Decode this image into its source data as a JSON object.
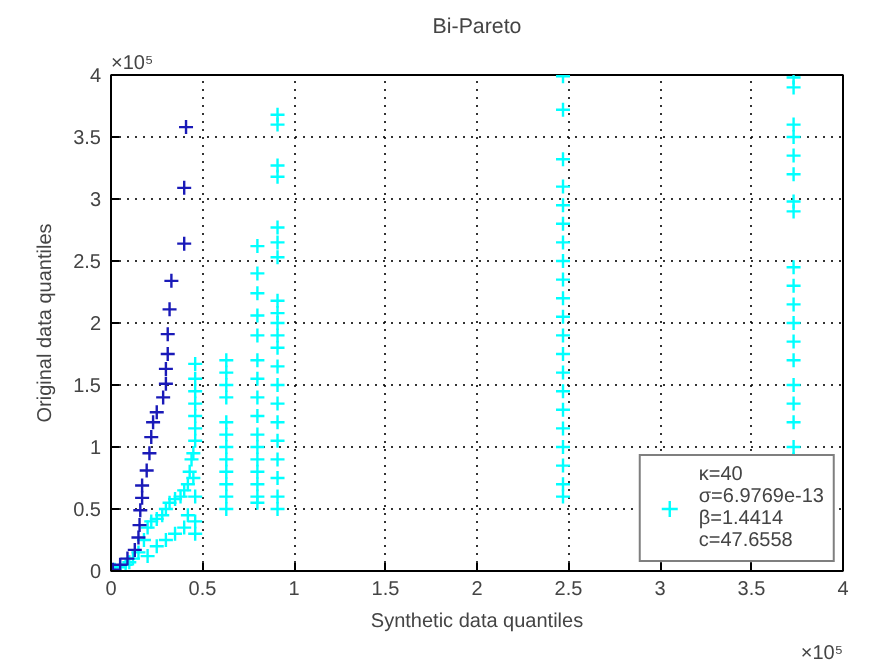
{
  "chart_data": {
    "type": "scatter",
    "title": "Bi-Pareto",
    "xlabel": "Synthetic data quantiles",
    "ylabel": "Original data quantiles",
    "annotations": [
      "×10⁵",
      "×10⁵"
    ],
    "xlim": [
      0,
      4
    ],
    "ylim": [
      0,
      4
    ],
    "xticks": [
      0,
      0.5,
      1,
      1.5,
      2,
      2.5,
      3,
      3.5,
      4
    ],
    "yticks": [
      0,
      0.5,
      1,
      1.5,
      2,
      2.5,
      3,
      3.5,
      4
    ],
    "grid": true,
    "legend": "bottom right",
    "marker": "cross",
    "series": [
      {
        "color": "#00ffff",
        "name": "κ=40\nσ=6.9769e-13\nβ=1.4414\nc=47.6558",
        "x": [
          0.02,
          0.05,
          0.08,
          0.1,
          0.12,
          0.15,
          0.18,
          0.2,
          0.22,
          0.25,
          0.28,
          0.3,
          0.32,
          0.35,
          0.38,
          0.4,
          0.42,
          0.43,
          0.44,
          0.45,
          0.45,
          0.2,
          0.25,
          0.3,
          0.35,
          0.4,
          0.42,
          0.46,
          0.46,
          0.46,
          0.46,
          0.46,
          0.46,
          0.46,
          0.46,
          0.46,
          0.46,
          0.63,
          0.63,
          0.63,
          0.63,
          0.63,
          0.63,
          0.63,
          0.63,
          0.63,
          0.63,
          0.63,
          0.63,
          0.8,
          0.8,
          0.8,
          0.8,
          0.8,
          0.8,
          0.8,
          0.8,
          0.8,
          0.8,
          0.8,
          0.8,
          0.8,
          0.8,
          0.8,
          0.8,
          0.91,
          0.91,
          0.91,
          0.91,
          0.91,
          0.91,
          0.91,
          0.91,
          0.91,
          0.91,
          0.91,
          0.91,
          0.91,
          0.91,
          0.91,
          0.91,
          0.91,
          0.91,
          0.91,
          0.91,
          0.91,
          2.47,
          2.47,
          2.47,
          2.47,
          2.47,
          2.47,
          2.47,
          2.47,
          2.47,
          2.47,
          2.47,
          2.47,
          2.47,
          2.47,
          2.47,
          2.47,
          2.47,
          2.47,
          2.47,
          2.47,
          2.47,
          3.73,
          3.73,
          3.73,
          3.73,
          3.73,
          3.73,
          3.73,
          3.73,
          3.73,
          3.73,
          3.73,
          3.73,
          3.73,
          3.73,
          3.73,
          3.73,
          3.73,
          3.73,
          3.73
        ],
        "values": [
          0.01,
          0.03,
          0.05,
          0.07,
          0.1,
          0.15,
          0.25,
          0.35,
          0.4,
          0.42,
          0.45,
          0.5,
          0.55,
          0.58,
          0.6,
          0.65,
          0.7,
          0.8,
          0.9,
          0.95,
          0.75,
          0.12,
          0.2,
          0.25,
          0.3,
          0.35,
          0.45,
          1.67,
          1.55,
          1.45,
          1.35,
          1.25,
          1.15,
          1.05,
          0.6,
          0.4,
          0.3,
          1.7,
          1.6,
          1.5,
          1.4,
          1.2,
          1.1,
          1.0,
          0.9,
          0.8,
          0.7,
          0.6,
          0.5,
          2.62,
          2.4,
          2.24,
          2.06,
          1.9,
          1.7,
          1.55,
          1.4,
          1.25,
          1.1,
          1.0,
          0.9,
          0.8,
          0.7,
          0.6,
          0.55,
          3.68,
          3.6,
          3.27,
          3.18,
          2.77,
          2.65,
          2.53,
          2.18,
          2.08,
          2.0,
          1.9,
          1.8,
          1.65,
          1.5,
          1.35,
          1.2,
          1.05,
          0.9,
          0.75,
          0.6,
          0.5,
          3.99,
          3.72,
          3.32,
          3.1,
          2.95,
          2.8,
          2.65,
          2.5,
          2.35,
          2.2,
          2.05,
          1.9,
          1.75,
          1.6,
          1.45,
          1.3,
          1.15,
          1.0,
          0.85,
          0.7,
          0.6,
          3.98,
          3.9,
          3.6,
          3.5,
          3.35,
          3.2,
          2.98,
          2.9,
          2.45,
          2.3,
          2.15,
          2.0,
          1.85,
          1.7,
          1.5,
          1.35,
          1.2,
          1.0,
          0.9
        ]
      },
      {
        "color": "#1a1ab8",
        "x": [
          0.01,
          0.05,
          0.09,
          0.13,
          0.15,
          0.156,
          0.16,
          0.17,
          0.17,
          0.195,
          0.21,
          0.22,
          0.23,
          0.25,
          0.285,
          0.3,
          0.3,
          0.31,
          0.31,
          0.32,
          0.33,
          0.4,
          0.4,
          0.41
        ],
        "values": [
          0.01,
          0.05,
          0.1,
          0.17,
          0.27,
          0.37,
          0.49,
          0.59,
          0.69,
          0.81,
          0.95,
          1.08,
          1.2,
          1.28,
          1.4,
          1.51,
          1.63,
          1.75,
          1.91,
          2.11,
          2.34,
          2.64,
          3.09,
          3.58
        ]
      }
    ]
  }
}
